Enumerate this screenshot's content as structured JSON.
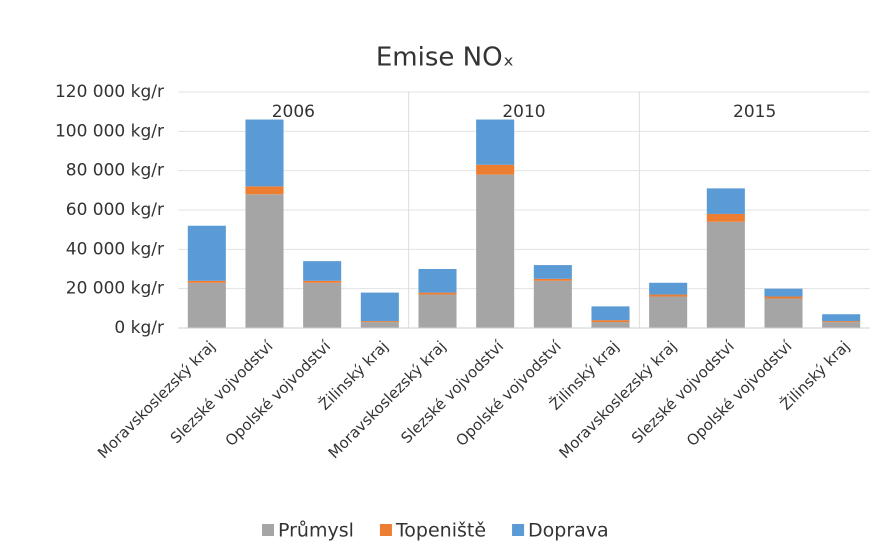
{
  "chart_data": {
    "type": "stacked_bar",
    "title": "Emise NOₓ",
    "categories": [
      "Moravskoslezský kraj",
      "Slezské vojvodství",
      "Opolské vojvodství",
      "Žilinský kraj",
      "Moravskoslezský kraj",
      "Slezské vojvodství",
      "Opolské vojvodství",
      "Žilinský kraj",
      "Moravskoslezský kraj",
      "Slezské vojvodství",
      "Opolské vojvodství",
      "Žilinský kraj"
    ],
    "group_labels": [
      "2006",
      "2010",
      "2015"
    ],
    "series": [
      {
        "name": "Průmysl",
        "color": "#a5a5a5",
        "values": [
          23000,
          68000,
          23000,
          3000,
          17000,
          78000,
          24000,
          3000,
          16000,
          54000,
          15000,
          3000
        ]
      },
      {
        "name": "Topeniště",
        "color": "#ed7d31",
        "values": [
          1000,
          4000,
          1000,
          500,
          1000,
          5000,
          1000,
          1000,
          1000,
          4000,
          1000,
          500
        ]
      },
      {
        "name": "Doprava",
        "color": "#5b9bd5",
        "values": [
          28000,
          34000,
          10000,
          14500,
          12000,
          23000,
          7000,
          7000,
          6000,
          13000,
          4000,
          3500
        ]
      }
    ],
    "ylim": [
      0,
      120000
    ],
    "yticks": [
      {
        "value": 0,
        "label": "0 kg/r"
      },
      {
        "value": 20000,
        "label": "20 000 kg/r"
      },
      {
        "value": 40000,
        "label": "40 000 kg/r"
      },
      {
        "value": 60000,
        "label": "60 000 kg/r"
      },
      {
        "value": 80000,
        "label": "80 000 kg/r"
      },
      {
        "value": 100000,
        "label": "100 000 kg/r"
      },
      {
        "value": 120000,
        "label": "120 000 kg/r"
      }
    ],
    "grid": true,
    "legend": "bottom"
  }
}
